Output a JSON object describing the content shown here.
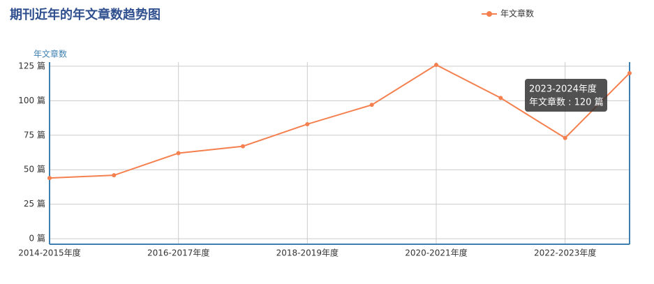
{
  "chart_data": {
    "type": "line",
    "title": "期刊近年的年文章数趋势图",
    "y_axis_label": "年文章数",
    "categories": [
      "2014-2015年度",
      null,
      "2016-2017年度",
      null,
      "2018-2019年度",
      null,
      "2020-2021年度",
      null,
      "2022-2023年度",
      null
    ],
    "series": [
      {
        "name": "年文章数",
        "color": "#f5804f",
        "values": [
          44,
          46,
          62,
          67,
          83,
          97,
          126,
          102,
          73,
          120
        ]
      }
    ],
    "ylim": [
      -4,
      128
    ],
    "yticks": [
      {
        "value": 0,
        "label": "0 篇"
      },
      {
        "value": 25,
        "label": "25 篇"
      },
      {
        "value": 50,
        "label": "50 篇"
      },
      {
        "value": 75,
        "label": "75 篇"
      },
      {
        "value": 100,
        "label": "100 篇"
      },
      {
        "value": 125,
        "label": "125 篇"
      }
    ],
    "grid": true,
    "legend": "top-right",
    "tooltip": {
      "title": "2023-2024年度",
      "text": "年文章数 : 120 篇"
    }
  }
}
